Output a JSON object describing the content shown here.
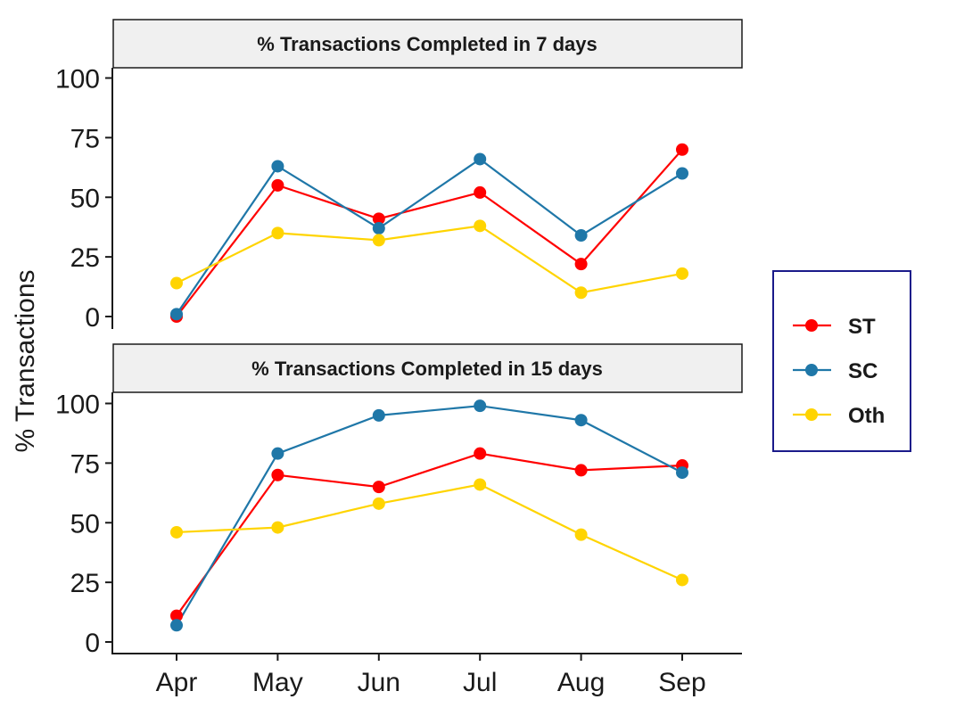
{
  "colors": {
    "ST": "#ff0000",
    "SC": "#1f77a8",
    "Oth": "#ffd400"
  },
  "chart_data": {
    "type": "line",
    "ylabel": "% Transactions",
    "xlabel": "",
    "categories": [
      "Apr",
      "May",
      "Jun",
      "Jul",
      "Aug",
      "Sep"
    ],
    "ylim": [
      0,
      100
    ],
    "yticks": [
      "0",
      "25",
      "50",
      "75",
      "100"
    ],
    "legend": {
      "placement": "right",
      "entries": [
        "ST",
        "SC",
        "Oth"
      ]
    },
    "grid": false,
    "panels": [
      {
        "title": "% Transactions Completed in 7 days",
        "series": [
          {
            "name": "ST",
            "values": [
              0,
              55,
              41,
              52,
              22,
              70
            ]
          },
          {
            "name": "SC",
            "values": [
              1,
              63,
              37,
              66,
              34,
              60
            ]
          },
          {
            "name": "Oth",
            "values": [
              14,
              35,
              32,
              38,
              10,
              18
            ]
          }
        ]
      },
      {
        "title": "% Transactions Completed in 15 days",
        "series": [
          {
            "name": "ST",
            "values": [
              11,
              70,
              65,
              79,
              72,
              74
            ]
          },
          {
            "name": "SC",
            "values": [
              7,
              79,
              95,
              99,
              93,
              71
            ]
          },
          {
            "name": "Oth",
            "values": [
              46,
              48,
              58,
              66,
              45,
              26
            ]
          }
        ]
      }
    ]
  }
}
